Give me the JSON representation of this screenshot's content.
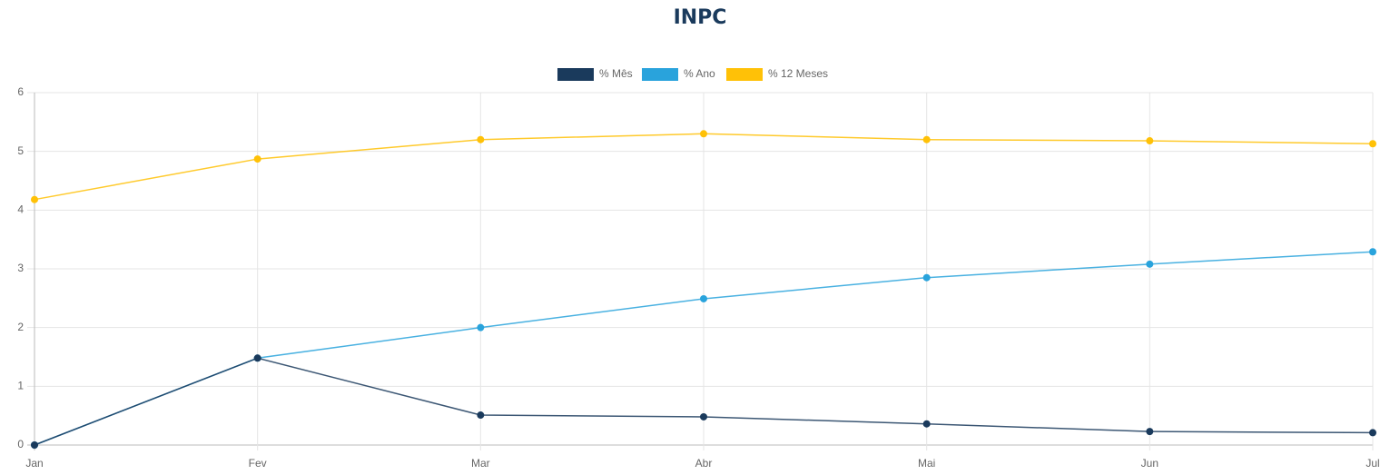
{
  "chart_data": {
    "type": "line",
    "title": "INPC",
    "categories": [
      "Jan",
      "Fev",
      "Mar",
      "Abr",
      "Mai",
      "Jun",
      "Jul"
    ],
    "series": [
      {
        "name": "% Mês",
        "color": "#1a3a5c",
        "values": [
          0,
          1.48,
          0.51,
          0.48,
          0.36,
          0.23,
          0.21
        ]
      },
      {
        "name": "% Ano",
        "color": "#29a3dc",
        "values": [
          0,
          1.48,
          2.0,
          2.49,
          2.85,
          3.08,
          3.29
        ]
      },
      {
        "name": "% 12 Meses",
        "color": "#ffc107",
        "values": [
          4.18,
          4.87,
          5.2,
          5.3,
          5.2,
          5.18,
          5.13
        ]
      }
    ],
    "ylim": [
      0,
      6
    ],
    "yticks": [
      0,
      1,
      2,
      3,
      4,
      5,
      6
    ],
    "grid": true,
    "legend": "top"
  }
}
